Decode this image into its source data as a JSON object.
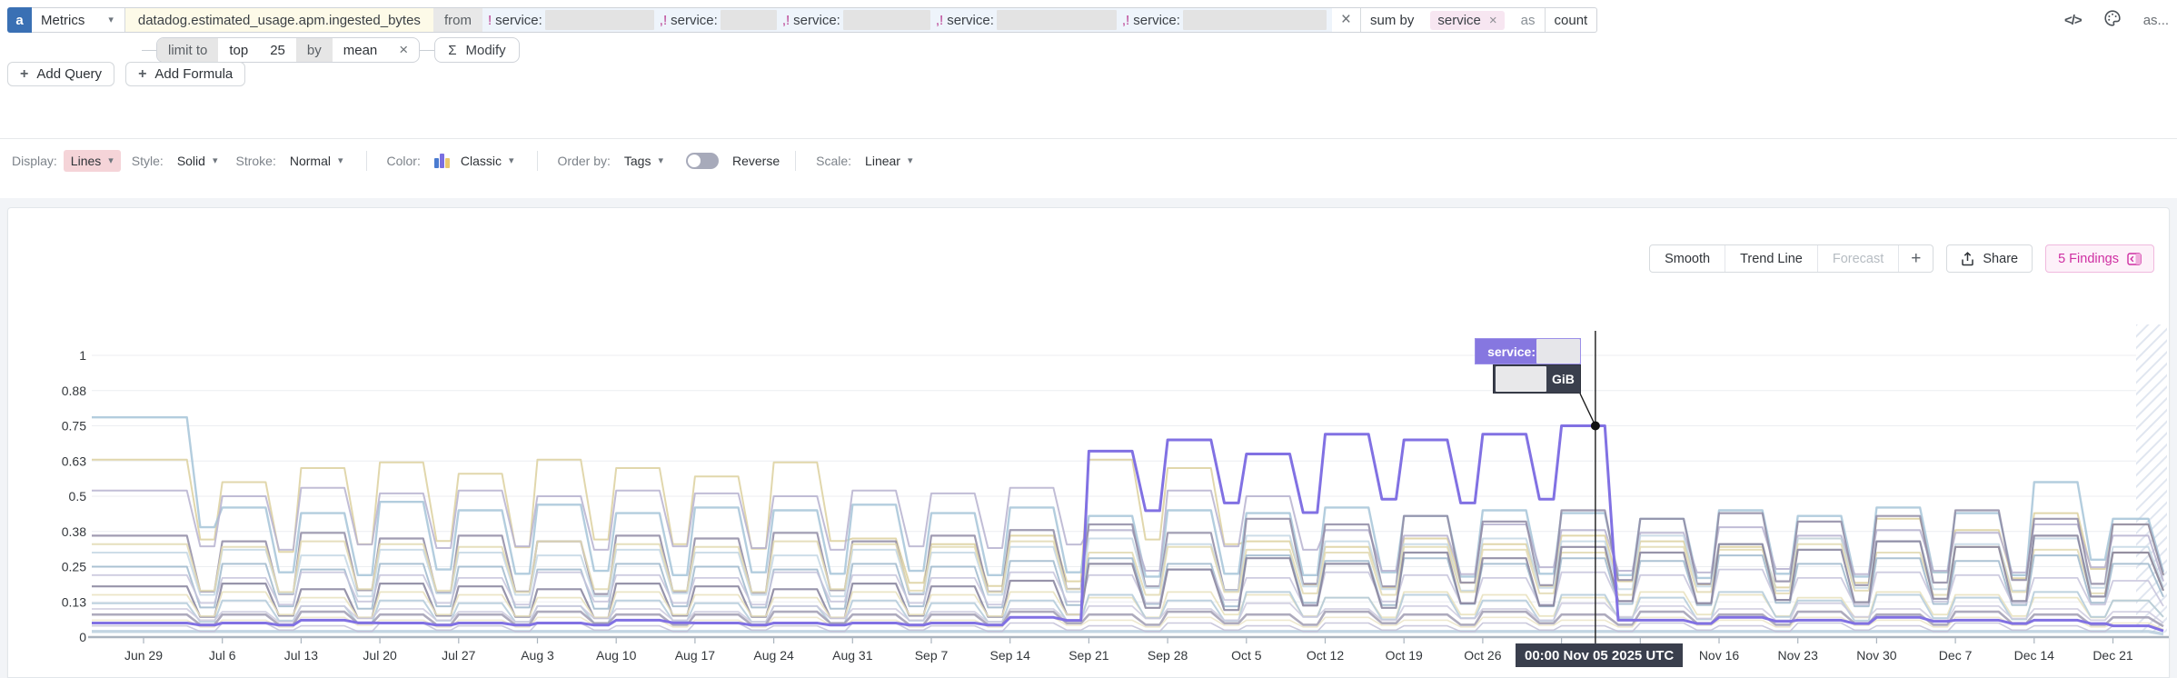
{
  "query_bar": {
    "letter": "a",
    "source": "Metrics",
    "metric": "datadog.estimated_usage.apm.ingested_bytes",
    "from_label": "from",
    "filters": [
      {
        "prefix": "!",
        "key": "service:",
        "value": "(redacted)",
        "redact_w": 120
      },
      {
        "prefix": ",!",
        "key": "service:",
        "value": "(redacted)",
        "redact_w": 62
      },
      {
        "prefix": ",!",
        "key": "service:",
        "value": "(redacted)",
        "redact_w": 96
      },
      {
        "prefix": ",!",
        "key": "service:",
        "value": "(redacted)",
        "redact_w": 132
      },
      {
        "prefix": ",!",
        "key": "service:",
        "value": "(redacted)",
        "redact_w": 158
      }
    ],
    "close": "×",
    "sum_by_label": "sum by",
    "group_tag": "service",
    "group_tag_close": "×",
    "as_label": "as",
    "as_value": "count",
    "code_icon": "</>",
    "alias_hint": "as..."
  },
  "limit_row": {
    "limit_to": "limit to",
    "top": "top",
    "count": "25",
    "by": "by",
    "agg": "mean",
    "close": "×",
    "sigma": "Σ",
    "modify": "Modify"
  },
  "actions": {
    "plus": "+",
    "add_query": "Add Query",
    "add_formula": "Add Formula"
  },
  "display_row": {
    "display_label": "Display:",
    "display_value": "Lines",
    "style_label": "Style:",
    "style_value": "Solid",
    "stroke_label": "Stroke:",
    "stroke_value": "Normal",
    "color_label": "Color:",
    "color_value": "Classic",
    "order_label": "Order by:",
    "order_value": "Tags",
    "reverse_label": "Reverse",
    "reverse_on": false,
    "scale_label": "Scale:",
    "scale_value": "Linear",
    "caret": "▾",
    "palette_swatch_colors": [
      "#4a7bd0",
      "#7a6fe0",
      "#e9c86e"
    ]
  },
  "chart_toolbar": {
    "smooth": "Smooth",
    "trend_line": "Trend Line",
    "forecast": "Forecast",
    "plus": "+",
    "share": "Share",
    "findings": "5 Findings"
  },
  "tooltip": {
    "series_label": "service:",
    "series_value": "(redacted)",
    "value": "(redacted)",
    "unit": "GiB"
  },
  "time_badge": "00:00 Nov 05 2025 UTC",
  "colors": {
    "highlight_purple": "#8171e3",
    "findings_pink": "#cf2fa2",
    "query_letter_blue": "#3a70b4",
    "filter_magenta": "#b8398f",
    "metric_highlight": "#fdfae8",
    "grid": "#eceef1",
    "axis": "#aab4be"
  },
  "chart_data": {
    "type": "line",
    "title": "",
    "ylabel": "",
    "xlabel": "",
    "ylim": [
      0,
      1
    ],
    "grid": true,
    "legend": "none (25 series, tag values redacted)",
    "y_ticks": [
      {
        "label": "1",
        "v": 1
      },
      {
        "label": "0.88",
        "v": 0.875
      },
      {
        "label": "0.75",
        "v": 0.75
      },
      {
        "label": "0.63",
        "v": 0.625
      },
      {
        "label": "0.5",
        "v": 0.5
      },
      {
        "label": "0.38",
        "v": 0.375
      },
      {
        "label": "0.25",
        "v": 0.25
      },
      {
        "label": "0.13",
        "v": 0.125
      },
      {
        "label": "0",
        "v": 0
      }
    ],
    "x_unit": "weeks (weekly values, weekday plateau with weekend dip)",
    "x_labels": [
      {
        "week": 0,
        "label": "Jun 29"
      },
      {
        "week": 1,
        "label": "Jul 6"
      },
      {
        "week": 2,
        "label": "Jul 13"
      },
      {
        "week": 3,
        "label": "Jul 20"
      },
      {
        "week": 4,
        "label": "Jul 27"
      },
      {
        "week": 5,
        "label": "Aug 3"
      },
      {
        "week": 6,
        "label": "Aug 10"
      },
      {
        "week": 7,
        "label": "Aug 17"
      },
      {
        "week": 8,
        "label": "Aug 24"
      },
      {
        "week": 9,
        "label": "Aug 31"
      },
      {
        "week": 10,
        "label": "Sep 7"
      },
      {
        "week": 11,
        "label": "Sep 14"
      },
      {
        "week": 12,
        "label": "Sep 21"
      },
      {
        "week": 13,
        "label": "Sep 28"
      },
      {
        "week": 14,
        "label": "Oct 5"
      },
      {
        "week": 15,
        "label": "Oct 12"
      },
      {
        "week": 16,
        "label": "Oct 19"
      },
      {
        "week": 17,
        "label": "Oct 26"
      },
      {
        "week": 20,
        "label": "Nov 16"
      },
      {
        "week": 21,
        "label": "Nov 23"
      },
      {
        "week": 22,
        "label": "Nov 30"
      },
      {
        "week": 23,
        "label": "Dec 7"
      },
      {
        "week": 24,
        "label": "Dec 14"
      },
      {
        "week": 25,
        "label": "Dec 21"
      }
    ],
    "crosshair": {
      "week": 18.43,
      "value": 0.75,
      "time_label": "00:00 Nov 05 2025 UTC",
      "unit": "GiB"
    },
    "incomplete_data_hatch_at_right_edge": true,
    "series": [
      {
        "name": "service (redacted) 02",
        "color": "#dcd09e",
        "width": 2,
        "dip": 0.55,
        "values": [
          0.63,
          0.55,
          0.6,
          0.62,
          0.58,
          0.63,
          0.6,
          0.57,
          0.62,
          0.35,
          0.33,
          0.36,
          0.63,
          0.6,
          0.34,
          0.32,
          0.35,
          0.33,
          0.36,
          0.34,
          0.32,
          0.35,
          0.42,
          0.38,
          0.44,
          0.4
        ]
      },
      {
        "name": "service (redacted) 03",
        "color": "#a6c4d8",
        "width": 2.4,
        "dip": 0.5,
        "values": [
          0.78,
          0.46,
          0.44,
          0.48,
          0.45,
          0.47,
          0.44,
          0.46,
          0.45,
          0.47,
          0.44,
          0.46,
          0.43,
          0.45,
          0.44,
          0.46,
          0.43,
          0.45,
          0.44,
          0.42,
          0.45,
          0.43,
          0.46,
          0.44,
          0.55,
          0.42
        ]
      },
      {
        "name": "service (redacted) 04",
        "color": "#b6b2cf",
        "width": 2,
        "dip": 0.62,
        "values": [
          0.52,
          0.5,
          0.53,
          0.51,
          0.52,
          0.5,
          0.52,
          0.51,
          0.5,
          0.52,
          0.51,
          0.53,
          0.38,
          0.52,
          0.5,
          0.38,
          0.36,
          0.4,
          0.38,
          0.37,
          0.39,
          0.36,
          0.38,
          0.37,
          0.4,
          0.36
        ]
      },
      {
        "name": "service (redacted) 05",
        "color": "#8f8ba4",
        "width": 2.2,
        "dip": 0.45,
        "values": [
          0.36,
          0.34,
          0.37,
          0.35,
          0.36,
          0.34,
          0.36,
          0.35,
          0.37,
          0.34,
          0.36,
          0.38,
          0.4,
          0.37,
          0.42,
          0.4,
          0.43,
          0.41,
          0.45,
          0.42,
          0.44,
          0.41,
          0.43,
          0.45,
          0.42,
          0.4
        ]
      },
      {
        "name": "service (redacted) 06",
        "color": "#c4d7e4",
        "width": 2,
        "dip": 0.5,
        "values": [
          0.3,
          0.31,
          0.29,
          0.31,
          0.3,
          0.29,
          0.31,
          0.3,
          0.29,
          0.31,
          0.3,
          0.32,
          0.35,
          0.33,
          0.36,
          0.34,
          0.33,
          0.35,
          0.34,
          0.36,
          0.33,
          0.35,
          0.34,
          0.33,
          0.35,
          0.32
        ]
      },
      {
        "name": "service (redacted) 07",
        "color": "#e2d9b1",
        "width": 2,
        "dip": 0.5,
        "values": [
          0.33,
          0.32,
          0.34,
          0.33,
          0.32,
          0.34,
          0.33,
          0.32,
          0.34,
          0.33,
          0.32,
          0.34,
          0.3,
          0.32,
          0.31,
          0.3,
          0.32,
          0.31,
          0.3,
          0.32,
          0.31,
          0.33,
          0.3,
          0.32,
          0.31,
          0.3
        ]
      },
      {
        "name": "service (redacted) 08",
        "color": "#9fb9cc",
        "width": 2,
        "dip": 0.42,
        "values": [
          0.25,
          0.26,
          0.24,
          0.26,
          0.25,
          0.24,
          0.26,
          0.25,
          0.24,
          0.26,
          0.25,
          0.27,
          0.28,
          0.26,
          0.29,
          0.27,
          0.28,
          0.26,
          0.28,
          0.27,
          0.29,
          0.26,
          0.28,
          0.27,
          0.29,
          0.26
        ]
      },
      {
        "name": "service (redacted) 09",
        "color": "#c6c3da",
        "width": 1.8,
        "dip": 0.55,
        "values": [
          0.22,
          0.21,
          0.23,
          0.22,
          0.21,
          0.23,
          0.22,
          0.21,
          0.23,
          0.22,
          0.21,
          0.23,
          0.22,
          0.24,
          0.21,
          0.23,
          0.22,
          0.21,
          0.23,
          0.22,
          0.24,
          0.21,
          0.23,
          0.22,
          0.21,
          0.2
        ]
      },
      {
        "name": "service (redacted) 10",
        "color": "#85819b",
        "width": 2.2,
        "dip": 0.4,
        "values": [
          0.18,
          0.19,
          0.17,
          0.19,
          0.18,
          0.17,
          0.19,
          0.18,
          0.17,
          0.19,
          0.18,
          0.2,
          0.26,
          0.24,
          0.28,
          0.26,
          0.3,
          0.28,
          0.32,
          0.3,
          0.33,
          0.31,
          0.34,
          0.32,
          0.36,
          0.3
        ]
      },
      {
        "name": "service (redacted) 11",
        "color": "#e8e0bc",
        "width": 1.8,
        "dip": 0.5,
        "values": [
          0.15,
          0.16,
          0.14,
          0.16,
          0.15,
          0.14,
          0.16,
          0.15,
          0.14,
          0.16,
          0.15,
          0.16,
          0.14,
          0.16,
          0.15,
          0.14,
          0.16,
          0.15,
          0.14,
          0.16,
          0.15,
          0.14,
          0.16,
          0.15,
          0.14,
          0.13
        ]
      },
      {
        "name": "service (redacted) 12",
        "color": "#b3cad9",
        "width": 2,
        "dip": 0.45,
        "values": [
          0.12,
          0.13,
          0.11,
          0.13,
          0.12,
          0.11,
          0.13,
          0.12,
          0.11,
          0.13,
          0.12,
          0.13,
          0.15,
          0.13,
          0.16,
          0.14,
          0.15,
          0.13,
          0.15,
          0.14,
          0.16,
          0.13,
          0.15,
          0.14,
          0.16,
          0.13
        ]
      },
      {
        "name": "service (redacted) 13",
        "color": "#cdcade",
        "width": 1.8,
        "dip": 0.6,
        "values": [
          0.1,
          0.09,
          0.11,
          0.1,
          0.09,
          0.11,
          0.1,
          0.09,
          0.11,
          0.1,
          0.09,
          0.1,
          0.11,
          0.1,
          0.12,
          0.1,
          0.11,
          0.1,
          0.12,
          0.11,
          0.1,
          0.12,
          0.1,
          0.11,
          0.1,
          0.09
        ]
      },
      {
        "name": "service (redacted) 14",
        "color": "#a09cb2",
        "width": 2.6,
        "dip": 0.55,
        "values": [
          0.08,
          0.08,
          0.09,
          0.08,
          0.08,
          0.09,
          0.08,
          0.08,
          0.09,
          0.08,
          0.08,
          0.09,
          0.08,
          0.09,
          0.08,
          0.09,
          0.08,
          0.09,
          0.08,
          0.09,
          0.08,
          0.09,
          0.08,
          0.09,
          0.08,
          0.07
        ]
      },
      {
        "name": "service (redacted) 15",
        "color": "#ece5c8",
        "width": 1.6,
        "dip": 0.6,
        "values": [
          0.06,
          0.06,
          0.07,
          0.06,
          0.06,
          0.07,
          0.06,
          0.06,
          0.07,
          0.06,
          0.06,
          0.07,
          0.06,
          0.07,
          0.06,
          0.07,
          0.06,
          0.07,
          0.06,
          0.07,
          0.06,
          0.07,
          0.06,
          0.07,
          0.06,
          0.05
        ]
      },
      {
        "name": "service (redacted) 16",
        "color": "#b9cedd",
        "width": 3.4,
        "dip": 1,
        "values": [
          0.02,
          0.02,
          0.02,
          0.02,
          0.02,
          0.02,
          0.02,
          0.02,
          0.02,
          0.02,
          0.02,
          0.02,
          0.02,
          0.02,
          0.02,
          0.02,
          0.02,
          0.02,
          0.02,
          0.02,
          0.02,
          0.02,
          0.02,
          0.02,
          0.02,
          0.02
        ]
      },
      {
        "name": "service (redacted) 17",
        "color": "#c2bfd6",
        "width": 1.6,
        "dip": 0.5,
        "values": [
          0.04,
          0.05,
          0.04,
          0.05,
          0.04,
          0.05,
          0.04,
          0.05,
          0.04,
          0.05,
          0.04,
          0.05,
          0.04,
          0.05,
          0.04,
          0.05,
          0.04,
          0.05,
          0.04,
          0.05,
          0.04,
          0.05,
          0.04,
          0.05,
          0.04,
          0.04
        ]
      },
      {
        "name": "service (redacted) 01 — hovered",
        "color": "#8171e3",
        "width": 3,
        "highlighted": true,
        "dips": [
          0.85,
          0.85,
          0.85,
          0.85,
          0.85,
          0.85,
          0.85,
          0.85,
          0.85,
          0.85,
          0.85,
          0.85,
          0.68,
          0.68,
          0.68,
          0.68,
          0.68,
          0.68,
          0.08,
          0.8,
          0.8,
          0.8,
          0.8,
          0.8,
          0.8,
          0.8
        ],
        "values": [
          0.05,
          0.05,
          0.06,
          0.05,
          0.05,
          0.05,
          0.06,
          0.05,
          0.05,
          0.05,
          0.05,
          0.07,
          0.66,
          0.7,
          0.65,
          0.72,
          0.7,
          0.72,
          0.75,
          0.06,
          0.07,
          0.06,
          0.07,
          0.06,
          0.06,
          0.04
        ]
      }
    ]
  }
}
